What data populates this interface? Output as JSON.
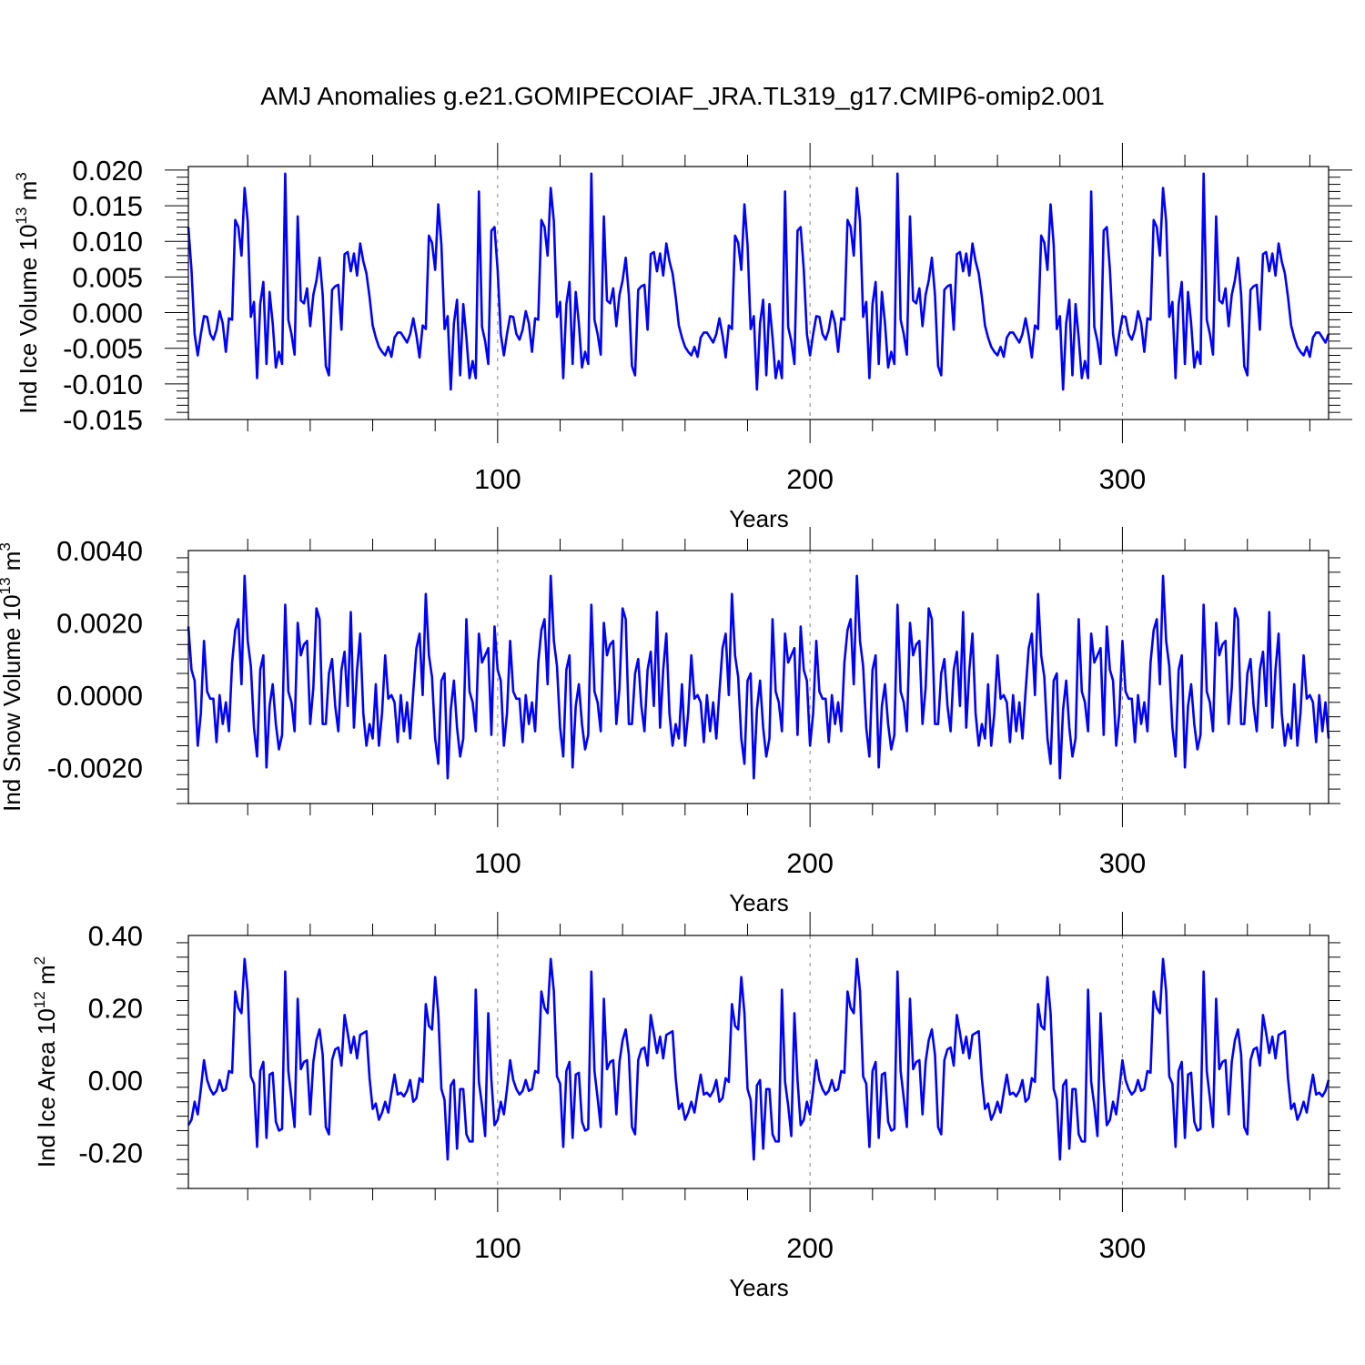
{
  "title": "AMJ Anomalies g.e21.GOMIPECOIAF_JRA.TL319_g17.CMIP6-omip2.001",
  "colors": {
    "series": "#0000ff",
    "axis": "#000000",
    "grid": "#808080"
  },
  "chart_data": [
    {
      "type": "line",
      "name": "ice-volume",
      "ylabel_main": "Ind Ice Volume 10",
      "ylabel_exp": "13",
      "ylabel_unit": " m",
      "ylabel_unit_exp": "3",
      "xlabel": "Years",
      "xlim": [
        1,
        366
      ],
      "ylim": [
        -0.015,
        0.0205
      ],
      "xticks": [
        100,
        200,
        300
      ],
      "xtick_labels": [
        "100",
        "200",
        "300"
      ],
      "yticks": [
        -0.015,
        -0.01,
        -0.005,
        0.0,
        0.005,
        0.01,
        0.015,
        0.02
      ],
      "ytick_labels": [
        "-0.015",
        "-0.010",
        "-0.005",
        "0.000",
        "0.005",
        "0.010",
        "0.015",
        "0.020"
      ],
      "grid_x": [
        100,
        200,
        300
      ],
      "pattern": [
        0.012,
        0.006,
        -0.003,
        -0.006,
        -0.003,
        -0.0005,
        -0.0006,
        -0.003,
        -0.0038,
        -0.0024,
        0.0002,
        -0.0015,
        -0.0055,
        -0.0008,
        -0.001,
        0.013,
        0.012,
        0.008,
        0.0175,
        0.0128,
        -0.0006,
        0.0015,
        -0.0092,
        0.0012,
        0.0043,
        -0.0072,
        0.0029,
        -0.0015,
        -0.0077,
        -0.0055,
        -0.0072,
        0.0195,
        -0.001,
        -0.003,
        -0.0059,
        0.0135,
        0.0017,
        0.0013,
        0.0034,
        -0.0019,
        0.0025,
        0.0045,
        0.0077,
        0.0025,
        -0.0075,
        -0.0088,
        0.0032,
        0.0037,
        0.0039,
        -0.0024,
        0.0082,
        0.0085,
        0.0058,
        0.0083,
        0.0052,
        0.0097,
        0.0072,
        0.0055,
        0.0022,
        -0.0018,
        -0.0035,
        -0.0048,
        -0.0055,
        -0.006,
        -0.0048,
        -0.0062,
        -0.0035,
        -0.0028,
        -0.0028,
        -0.0035,
        -0.0042,
        -0.003,
        -0.0008,
        -0.0032,
        -0.0063,
        -0.0018,
        -0.0023,
        0.0108,
        0.0098,
        0.006,
        0.0152,
        0.0095,
        -0.0023,
        -0.0005,
        -0.0108,
        -0.0015,
        0.0018,
        -0.0088,
        0.0012,
        -0.0035,
        -0.0092,
        -0.0068,
        -0.0092,
        0.017,
        -0.002,
        -0.004,
        -0.0072,
        0.0115
      ],
      "period": 98
    },
    {
      "type": "line",
      "name": "snow-volume",
      "ylabel_main": "Ind Snow Volume 10",
      "ylabel_exp": "13",
      "ylabel_unit": " m",
      "ylabel_unit_exp": "3",
      "xlabel": "Years",
      "xlim": [
        1,
        366
      ],
      "ylim": [
        -0.003,
        0.004
      ],
      "xticks": [
        100,
        200,
        300
      ],
      "xtick_labels": [
        "100",
        "200",
        "300"
      ],
      "yticks": [
        -0.002,
        0.0,
        0.002,
        0.004
      ],
      "ytick_labels": [
        "-0.0020",
        "0.0000",
        "0.0020",
        "0.0040"
      ],
      "grid_x": [
        100,
        200,
        300
      ],
      "pattern": [
        0.0019,
        0.0007,
        0.0004,
        -0.0014,
        -0.0005,
        0.0015,
        0.0001,
        -0.0001,
        -0.0001,
        -0.0013,
        0.0,
        -0.0008,
        -0.0002,
        -0.001,
        0.0009,
        0.0018,
        0.0021,
        0.0003,
        0.0033,
        0.0015,
        0.0008,
        -0.0009,
        -0.0017,
        0.0007,
        0.0011,
        -0.002,
        -0.0003,
        0.0003,
        -0.0008,
        -0.0015,
        -0.0011,
        0.0025,
        0.0001,
        -0.0002,
        -0.001,
        0.002,
        0.0011,
        0.0014,
        0.0015,
        -0.0008,
        0.0002,
        0.0024,
        0.0021,
        -0.0008,
        -0.0008,
        0.0006,
        0.001,
        -0.0003,
        -0.001,
        0.0007,
        0.0012,
        -0.0003,
        0.0023,
        -0.0009,
        0.0007,
        0.0017,
        -0.0005,
        -0.0014,
        -0.0008,
        -0.0012,
        0.0003,
        -0.0014,
        -0.0005,
        0.0011,
        -0.0001,
        0.0,
        -0.0002,
        -0.0013,
        0.0,
        -0.001,
        -0.0002,
        -0.0012,
        0.0001,
        0.0013,
        0.0017,
        0.0,
        0.0028,
        0.0011,
        0.0005,
        -0.0012,
        -0.0019,
        0.0004,
        0.0006,
        -0.0023,
        -0.0004,
        0.0004,
        -0.0009,
        -0.0017,
        -0.0012,
        0.0021,
        0.0001,
        -0.0002,
        -0.001,
        0.0017,
        0.0009,
        0.0011,
        0.0013,
        -0.0011
      ],
      "period": 98
    },
    {
      "type": "line",
      "name": "ice-area",
      "ylabel_main": "Ind Ice Area 10",
      "ylabel_exp": "12",
      "ylabel_unit": " m",
      "ylabel_unit_exp": "2",
      "xlabel": "Years",
      "xlim": [
        1,
        366
      ],
      "ylim": [
        -0.3,
        0.4
      ],
      "xticks": [
        100,
        200,
        300
      ],
      "xtick_labels": [
        "100",
        "200",
        "300"
      ],
      "yticks": [
        -0.2,
        0.0,
        0.2,
        0.4
      ],
      "ytick_labels": [
        "-0.20",
        "0.00",
        "0.20",
        "0.40"
      ],
      "grid_x": [
        100,
        200,
        300
      ],
      "pattern": [
        -0.125,
        -0.11,
        -0.06,
        -0.095,
        -0.025,
        0.055,
        0.0,
        -0.025,
        -0.04,
        -0.03,
        0.0,
        -0.03,
        -0.025,
        0.025,
        0.02,
        0.245,
        0.2,
        0.185,
        0.335,
        0.245,
        0.01,
        -0.01,
        -0.185,
        0.025,
        0.05,
        -0.16,
        0.015,
        0.02,
        -0.115,
        -0.14,
        -0.135,
        0.3,
        0.025,
        -0.05,
        -0.13,
        0.225,
        0.03,
        0.05,
        0.055,
        -0.095,
        0.05,
        0.11,
        0.14,
        0.07,
        -0.13,
        -0.15,
        0.055,
        0.085,
        0.09,
        0.04,
        0.18,
        0.13,
        0.075,
        0.12,
        0.06,
        0.125,
        0.13,
        0.135,
        0.005,
        -0.08,
        -0.065,
        -0.11,
        -0.09,
        -0.06,
        -0.09,
        -0.035,
        0.015,
        -0.04,
        -0.035,
        -0.045,
        -0.03,
        0.0,
        -0.06,
        -0.05,
        0.005,
        -0.005,
        0.21,
        0.15,
        0.14,
        0.285,
        0.185,
        -0.025,
        -0.055,
        -0.22,
        -0.015,
        0.0,
        -0.19,
        -0.025,
        -0.025,
        -0.15,
        -0.17,
        -0.17,
        0.25,
        -0.005,
        -0.07,
        -0.155,
        0.185,
        0.0
      ],
      "period": 98
    }
  ]
}
